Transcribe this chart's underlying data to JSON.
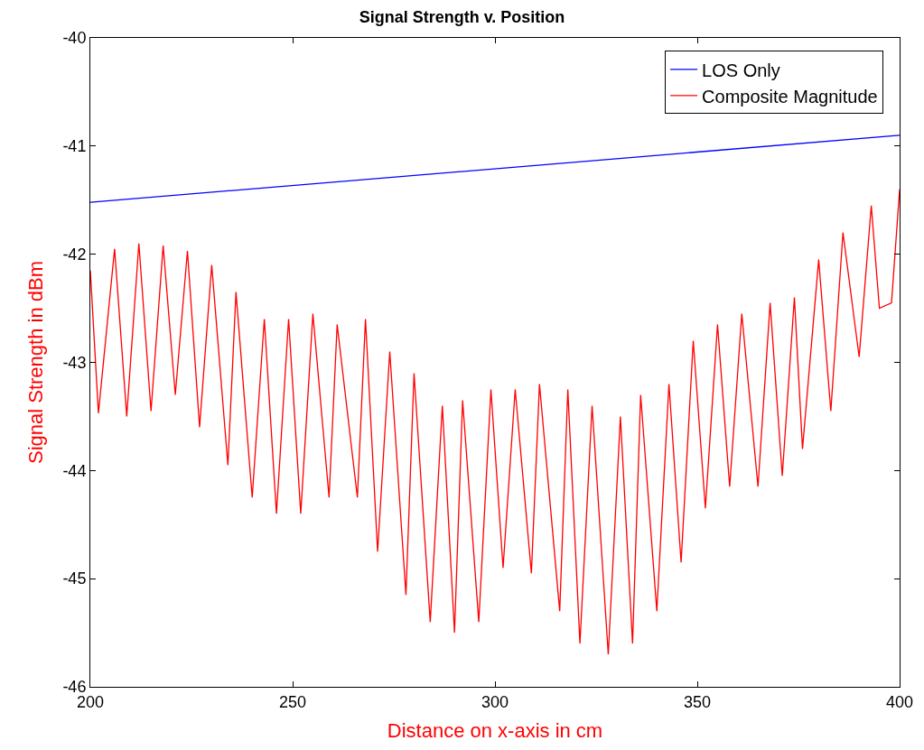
{
  "chart_data": {
    "type": "line",
    "title": "Signal Strength v. Position",
    "xlabel": "Distance on x-axis in cm",
    "ylabel": "Signal Strength in dBm",
    "xlim": [
      200,
      400
    ],
    "xticks": [
      200,
      250,
      300,
      350,
      400
    ],
    "ylim": [
      -46,
      -40
    ],
    "yticks": [
      -46,
      -45,
      -44,
      -43,
      -42,
      -41,
      -40
    ],
    "legend": "top right",
    "marker": "none",
    "line_style": "solid",
    "series": [
      {
        "name": "LOS Only",
        "color": "#0000ff",
        "x": [
          200,
          400
        ],
        "values": [
          -41.52,
          -40.9
        ]
      },
      {
        "name": "Composite Magnitude",
        "color": "#ff0000",
        "x": [
          200,
          202,
          206,
          209,
          212,
          215,
          218,
          221,
          224,
          227,
          230,
          234,
          236,
          240,
          243,
          246,
          249,
          252,
          255,
          259,
          261,
          266,
          268,
          271,
          274,
          278,
          280,
          284,
          287,
          290,
          292,
          296,
          299,
          302,
          305,
          309,
          311,
          316,
          318,
          321,
          324,
          328,
          331,
          334,
          336,
          340,
          343,
          346,
          349,
          352,
          355,
          358,
          361,
          365,
          368,
          371,
          374,
          376,
          380,
          383,
          386,
          390,
          393,
          395,
          398,
          400
        ],
        "values": [
          -42.15,
          -43.47,
          -41.95,
          -43.5,
          -41.9,
          -43.45,
          -41.92,
          -43.3,
          -41.97,
          -43.6,
          -42.1,
          -43.95,
          -42.35,
          -44.25,
          -42.6,
          -44.4,
          -42.6,
          -44.4,
          -42.55,
          -44.25,
          -42.65,
          -44.25,
          -42.6,
          -44.75,
          -42.9,
          -45.15,
          -43.1,
          -45.4,
          -43.4,
          -45.5,
          -43.35,
          -45.4,
          -43.25,
          -44.9,
          -43.25,
          -44.95,
          -43.2,
          -45.3,
          -43.25,
          -45.6,
          -43.4,
          -45.7,
          -43.5,
          -45.6,
          -43.3,
          -45.3,
          -43.2,
          -44.85,
          -42.8,
          -44.35,
          -42.65,
          -44.15,
          -42.55,
          -44.15,
          -42.45,
          -44.05,
          -42.4,
          -43.8,
          -42.05,
          -43.45,
          -41.8,
          -42.95,
          -41.55,
          -42.5,
          -42.45,
          -41.4
        ]
      }
    ]
  }
}
